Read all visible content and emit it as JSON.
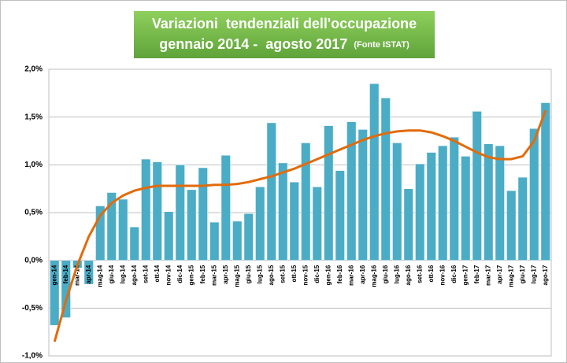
{
  "chart_data": {
    "type": "bar",
    "title": "Variazioni  tendenziali dell'occupazione",
    "subtitle": "gennaio 2014 -  agosto 2017",
    "source": "(Fonte ISTAT)",
    "categories": [
      "gen-14",
      "feb-14",
      "mar-14",
      "apr-14",
      "mag-14",
      "giu-14",
      "lug-14",
      "ago-14",
      "set-14",
      "ott-14",
      "nov-14",
      "dic-14",
      "gen-15",
      "feb-15",
      "mar-15",
      "apr-15",
      "mag-15",
      "giu-15",
      "lug-15",
      "ago-15",
      "set-15",
      "ott-15",
      "nov-15",
      "dic-15",
      "gen-16",
      "feb-16",
      "mar-16",
      "apr-16",
      "mag-16",
      "giu-16",
      "lug-16",
      "ago-16",
      "set-16",
      "ott-16",
      "nov-16",
      "dic-16",
      "gen-17",
      "feb-17",
      "mar-17",
      "apr-17",
      "mag-17",
      "giu-17",
      "lug-17",
      "ago-17"
    ],
    "series": [
      {
        "type": "bar",
        "color": "#4bacc6",
        "values": [
          -0.68,
          -0.6,
          -0.08,
          -0.25,
          0.57,
          0.71,
          0.64,
          0.35,
          1.06,
          1.03,
          0.51,
          1.0,
          0.74,
          0.97,
          0.4,
          1.1,
          0.41,
          0.49,
          0.77,
          1.44,
          1.02,
          0.82,
          1.23,
          0.77,
          1.41,
          0.94,
          1.45,
          1.37,
          1.85,
          1.7,
          1.23,
          0.75,
          1.01,
          1.13,
          1.2,
          1.29,
          1.09,
          1.56,
          1.22,
          1.2,
          0.73,
          0.87,
          1.38,
          1.65
        ]
      },
      {
        "type": "line",
        "color": "#e26b0a",
        "values": [
          -0.85,
          -0.42,
          -0.05,
          0.25,
          0.47,
          0.6,
          0.68,
          0.73,
          0.76,
          0.78,
          0.78,
          0.78,
          0.78,
          0.78,
          0.79,
          0.79,
          0.8,
          0.82,
          0.85,
          0.88,
          0.92,
          0.96,
          1.01,
          1.06,
          1.11,
          1.16,
          1.21,
          1.26,
          1.3,
          1.33,
          1.35,
          1.36,
          1.36,
          1.34,
          1.3,
          1.25,
          1.19,
          1.13,
          1.08,
          1.06,
          1.06,
          1.09,
          1.25,
          1.57
        ]
      }
    ],
    "ylim": [
      -1,
      2
    ],
    "yticks": [
      {
        "value": -1,
        "label": "-1,0%"
      },
      {
        "value": -0.5,
        "label": "-0,5%"
      },
      {
        "value": 0,
        "label": "0,0%"
      },
      {
        "value": 0.5,
        "label": "0,5%"
      },
      {
        "value": 1,
        "label": "1,0%"
      },
      {
        "value": 1.5,
        "label": "1,5%"
      },
      {
        "value": 2,
        "label": "2,0%"
      }
    ],
    "grid": true
  }
}
